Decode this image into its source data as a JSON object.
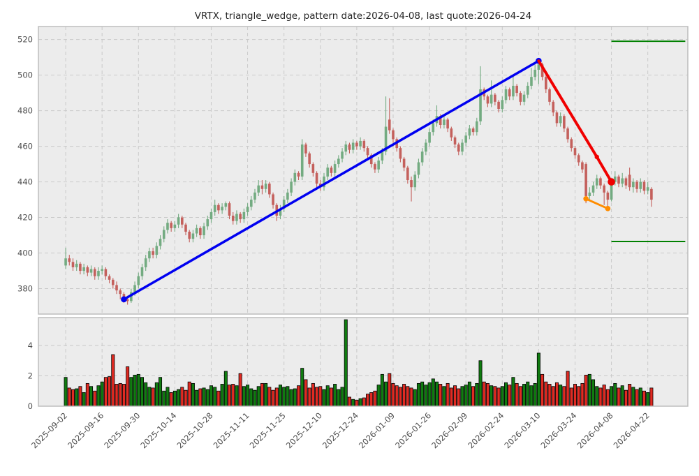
{
  "title": "VRTX, triangle_wedge, pattern date:2026-04-08, last quote:2026-04-24",
  "ticker": "VRTX",
  "pattern_name": "triangle_wedge",
  "pattern_date": "2026-04-08",
  "last_quote_date": "2026-04-24",
  "colors": {
    "figure_bg": "#ffffff",
    "panel_bg": "#ececec",
    "grid": "#c9c9c9",
    "spine": "#bdbdbd",
    "tick_label": "#4d4d4d",
    "title_text": "#262626",
    "candle_up": "#73ab81",
    "candle_down": "#c4605c",
    "volume_up": "#107c10",
    "volume_down": "#e12a22",
    "volume_edge": "#000000",
    "trend_up_line": "#0000f0",
    "trend_down_line": "#f00000",
    "wedge_line": "#ff8c00",
    "target_line": "#008000"
  },
  "chart_data": {
    "type": "candlestick+volume",
    "title": "VRTX, triangle_wedge, pattern date:2026-04-08, last quote:2026-04-24",
    "grid": "dashed",
    "legend": "none",
    "xlim": [
      -7.5,
      171
    ],
    "x_tick_indices": [
      0,
      10,
      20,
      30,
      40,
      50,
      60,
      70,
      80,
      90,
      100,
      110,
      120,
      130,
      140,
      150,
      160
    ],
    "x_tick_labels": [
      "2025-09-02",
      "2025-09-16",
      "2025-09-30",
      "2025-10-14",
      "2025-10-28",
      "2025-11-11",
      "2025-11-25",
      "2025-12-10",
      "2025-12-24",
      "2026-01-09",
      "2026-01-26",
      "2026-02-09",
      "2026-02-24",
      "2026-03-10",
      "2026-03-24",
      "2026-04-08",
      "2026-04-22"
    ],
    "price_axis": {
      "ticks": [
        380,
        400,
        420,
        440,
        460,
        480,
        500,
        520
      ],
      "ylim": [
        365.7,
        527.3
      ]
    },
    "volume_axis": {
      "ticks": [
        0,
        2,
        4
      ],
      "ylim": [
        0,
        5.84
      ]
    },
    "candles_format": [
      "open",
      "high",
      "low",
      "close",
      "volume"
    ],
    "candles": [
      [
        393,
        403,
        391,
        397,
        1.9
      ],
      [
        397,
        399,
        393,
        395,
        1.2
      ],
      [
        395,
        397,
        390,
        392,
        1.1
      ],
      [
        392,
        396,
        390,
        394,
        1.15
      ],
      [
        394,
        395,
        388,
        390,
        1.3
      ],
      [
        390,
        394,
        388,
        392,
        0.9
      ],
      [
        392,
        393,
        387,
        389,
        1.5
      ],
      [
        389,
        393,
        387,
        391,
        1.3
      ],
      [
        391,
        392,
        385,
        387,
        1.0
      ],
      [
        387,
        392,
        385,
        390,
        1.35
      ],
      [
        390,
        393,
        388,
        391,
        1.6
      ],
      [
        391,
        392,
        385,
        387,
        1.9
      ],
      [
        387,
        388,
        383,
        385,
        1.95
      ],
      [
        385,
        386,
        380,
        382,
        3.4
      ],
      [
        382,
        384,
        377,
        379,
        1.45
      ],
      [
        379,
        380,
        374,
        377,
        1.5
      ],
      [
        377,
        378,
        372,
        374,
        1.45
      ],
      [
        374,
        376,
        371,
        373,
        2.6
      ],
      [
        373,
        380,
        372,
        378,
        1.9
      ],
      [
        378,
        384,
        376,
        382,
        2.05
      ],
      [
        382,
        389,
        380,
        387,
        2.1
      ],
      [
        387,
        394,
        385,
        392,
        1.9
      ],
      [
        392,
        399,
        390,
        397,
        1.55
      ],
      [
        397,
        403,
        395,
        401,
        1.25
      ],
      [
        401,
        403,
        397,
        399,
        1.2
      ],
      [
        399,
        406,
        397,
        404,
        1.55
      ],
      [
        404,
        410,
        402,
        408,
        1.9
      ],
      [
        408,
        415,
        406,
        413,
        1.0
      ],
      [
        413,
        419,
        411,
        417,
        1.25
      ],
      [
        417,
        418,
        412,
        414,
        0.9
      ],
      [
        414,
        418,
        412,
        416,
        1.0
      ],
      [
        416,
        422,
        414,
        420,
        1.1
      ],
      [
        420,
        421,
        414,
        416,
        1.25
      ],
      [
        416,
        417,
        410,
        412,
        1.05
      ],
      [
        412,
        413,
        406,
        408,
        1.6
      ],
      [
        408,
        413,
        406,
        411,
        1.5
      ],
      [
        411,
        416,
        409,
        414,
        1.05
      ],
      [
        414,
        415,
        408,
        410,
        1.15
      ],
      [
        410,
        417,
        408,
        415,
        1.2
      ],
      [
        415,
        421,
        413,
        419,
        1.1
      ],
      [
        419,
        425,
        417,
        423,
        1.35
      ],
      [
        423,
        430,
        421,
        427,
        1.25
      ],
      [
        427,
        428,
        422,
        424,
        1.0
      ],
      [
        424,
        428,
        422,
        426,
        1.45
      ],
      [
        426,
        429,
        424,
        428,
        2.3
      ],
      [
        428,
        429,
        419,
        421,
        1.4
      ],
      [
        421,
        423,
        416,
        418,
        1.45
      ],
      [
        418,
        424,
        416,
        422,
        1.35
      ],
      [
        422,
        423,
        417,
        419,
        2.15
      ],
      [
        419,
        425,
        417,
        423,
        1.3
      ],
      [
        423,
        428,
        421,
        426,
        1.4
      ],
      [
        426,
        432,
        424,
        430,
        1.15
      ],
      [
        430,
        436,
        428,
        434,
        1.05
      ],
      [
        434,
        441,
        432,
        438,
        1.3
      ],
      [
        438,
        441,
        433,
        436,
        1.5
      ],
      [
        436,
        441,
        434,
        439,
        1.5
      ],
      [
        439,
        440,
        431,
        433,
        1.25
      ],
      [
        433,
        434,
        425,
        427,
        1.05
      ],
      [
        427,
        428,
        418,
        421,
        1.2
      ],
      [
        421,
        427,
        419,
        425,
        1.4
      ],
      [
        425,
        432,
        423,
        430,
        1.25
      ],
      [
        430,
        436,
        428,
        434,
        1.3
      ],
      [
        434,
        442,
        432,
        440,
        1.1
      ],
      [
        440,
        447,
        438,
        445,
        1.15
      ],
      [
        445,
        446,
        441,
        443,
        1.35
      ],
      [
        443,
        464,
        441,
        461,
        2.5
      ],
      [
        461,
        462,
        454,
        456,
        1.75
      ],
      [
        456,
        457,
        448,
        450,
        1.2
      ],
      [
        450,
        451,
        443,
        445,
        1.5
      ],
      [
        445,
        446,
        437,
        439,
        1.25
      ],
      [
        439,
        441,
        435,
        437,
        1.3
      ],
      [
        437,
        445,
        435,
        443,
        1.1
      ],
      [
        443,
        450,
        441,
        448,
        1.35
      ],
      [
        448,
        449,
        443,
        445,
        1.2
      ],
      [
        445,
        452,
        443,
        450,
        1.45
      ],
      [
        450,
        455,
        448,
        453,
        1.1
      ],
      [
        453,
        459,
        451,
        457,
        1.25
      ],
      [
        457,
        463,
        455,
        461,
        5.7
      ],
      [
        461,
        462,
        456,
        458,
        0.6
      ],
      [
        458,
        464,
        456,
        462,
        0.45
      ],
      [
        462,
        463,
        458,
        460,
        0.4
      ],
      [
        460,
        465,
        458,
        463,
        0.5
      ],
      [
        463,
        464,
        457,
        459,
        0.55
      ],
      [
        459,
        460,
        453,
        455,
        0.8
      ],
      [
        455,
        456,
        448,
        450,
        0.9
      ],
      [
        450,
        451,
        445,
        447,
        1.0
      ],
      [
        447,
        454,
        445,
        452,
        1.4
      ],
      [
        452,
        459,
        450,
        457,
        2.1
      ],
      [
        457,
        488,
        455,
        471,
        1.6
      ],
      [
        475,
        487,
        467,
        469,
        2.15
      ],
      [
        469,
        470,
        462,
        464,
        1.5
      ],
      [
        464,
        465,
        457,
        459,
        1.35
      ],
      [
        459,
        460,
        451,
        453,
        1.25
      ],
      [
        453,
        454,
        446,
        448,
        1.45
      ],
      [
        448,
        449,
        439,
        441,
        1.3
      ],
      [
        441,
        443,
        429,
        437,
        1.2
      ],
      [
        437,
        446,
        435,
        444,
        1.1
      ],
      [
        444,
        453,
        442,
        451,
        1.5
      ],
      [
        451,
        459,
        449,
        457,
        1.6
      ],
      [
        457,
        464,
        455,
        462,
        1.4
      ],
      [
        462,
        470,
        460,
        468,
        1.55
      ],
      [
        468,
        475,
        466,
        473,
        1.8
      ],
      [
        473,
        483,
        471,
        477,
        1.6
      ],
      [
        477,
        478,
        470,
        472,
        1.45
      ],
      [
        472,
        477,
        470,
        475,
        1.3
      ],
      [
        475,
        476,
        468,
        470,
        1.5
      ],
      [
        470,
        471,
        463,
        465,
        1.2
      ],
      [
        465,
        466,
        459,
        461,
        1.35
      ],
      [
        461,
        462,
        455,
        457,
        1.15
      ],
      [
        457,
        464,
        455,
        462,
        1.3
      ],
      [
        462,
        468,
        460,
        466,
        1.4
      ],
      [
        466,
        472,
        464,
        470,
        1.6
      ],
      [
        470,
        471,
        466,
        468,
        1.3
      ],
      [
        468,
        476,
        466,
        474,
        1.5
      ],
      [
        474,
        505,
        472,
        492,
        3.0
      ],
      [
        492,
        493,
        486,
        488,
        1.6
      ],
      [
        488,
        489,
        482,
        484,
        1.5
      ],
      [
        484,
        497,
        482,
        489,
        1.35
      ],
      [
        489,
        490,
        483,
        485,
        1.3
      ],
      [
        485,
        486,
        479,
        481,
        1.2
      ],
      [
        481,
        488,
        479,
        486,
        1.3
      ],
      [
        486,
        494,
        484,
        492,
        1.55
      ],
      [
        492,
        493,
        486,
        488,
        1.4
      ],
      [
        488,
        500,
        486,
        494,
        1.9
      ],
      [
        494,
        495,
        488,
        490,
        1.5
      ],
      [
        490,
        491,
        483,
        485,
        1.3
      ],
      [
        485,
        491,
        483,
        489,
        1.45
      ],
      [
        489,
        496,
        487,
        494,
        1.6
      ],
      [
        494,
        504,
        492,
        499,
        1.35
      ],
      [
        499,
        506,
        497,
        503,
        1.5
      ],
      [
        503,
        509,
        495,
        506,
        3.5
      ],
      [
        506,
        507,
        497,
        499,
        2.1
      ],
      [
        499,
        500,
        490,
        492,
        1.6
      ],
      [
        492,
        493,
        483,
        485,
        1.45
      ],
      [
        485,
        486,
        477,
        479,
        1.3
      ],
      [
        479,
        480,
        471,
        473,
        1.55
      ],
      [
        473,
        479,
        471,
        477,
        1.4
      ],
      [
        477,
        478,
        468,
        470,
        1.3
      ],
      [
        470,
        471,
        462,
        464,
        2.3
      ],
      [
        464,
        465,
        457,
        459,
        1.2
      ],
      [
        459,
        460,
        453,
        455,
        1.45
      ],
      [
        455,
        456,
        449,
        451,
        1.3
      ],
      [
        451,
        452,
        445,
        447,
        1.5
      ],
      [
        450,
        451,
        428,
        432,
        2.05
      ],
      [
        432,
        437,
        430,
        434,
        2.1
      ],
      [
        434,
        440,
        432,
        438,
        1.75
      ],
      [
        438,
        444,
        436,
        442,
        1.3
      ],
      [
        442,
        443,
        436,
        438,
        1.2
      ],
      [
        438,
        439,
        427,
        434,
        1.4
      ],
      [
        434,
        435,
        424,
        430,
        1.1
      ],
      [
        430,
        442,
        429,
        440,
        1.3
      ],
      [
        440,
        446,
        438,
        443,
        1.5
      ],
      [
        443,
        444,
        437,
        439,
        1.2
      ],
      [
        439,
        445,
        437,
        442,
        1.35
      ],
      [
        442,
        443,
        436,
        438,
        1.05
      ],
      [
        444,
        448,
        435,
        437,
        1.45
      ],
      [
        437,
        442,
        434,
        440,
        1.25
      ],
      [
        440,
        441,
        434,
        436,
        1.1
      ],
      [
        436,
        442,
        434,
        440,
        1.2
      ],
      [
        440,
        441,
        433,
        435,
        1.0
      ],
      [
        435,
        440,
        433,
        437,
        0.9
      ],
      [
        436,
        437,
        426,
        430,
        1.2
      ]
    ],
    "overlays": {
      "trend_up": {
        "label": "up-trend line",
        "points": [
          [
            16,
            374
          ],
          [
            130,
            508
          ]
        ]
      },
      "trend_down": {
        "label": "decline line",
        "points": [
          [
            130,
            508
          ],
          [
            146,
            454
          ],
          [
            150,
            440
          ]
        ]
      },
      "wedge_segment": {
        "label": "wedge line",
        "points": [
          [
            143,
            430.5
          ],
          [
            149,
            425
          ]
        ]
      },
      "target_levels": [
        {
          "value": 519,
          "x_start": 150,
          "x_end": 170.3
        },
        {
          "value": 406.5,
          "x_start": 150,
          "x_end": 170.3
        }
      ]
    }
  }
}
